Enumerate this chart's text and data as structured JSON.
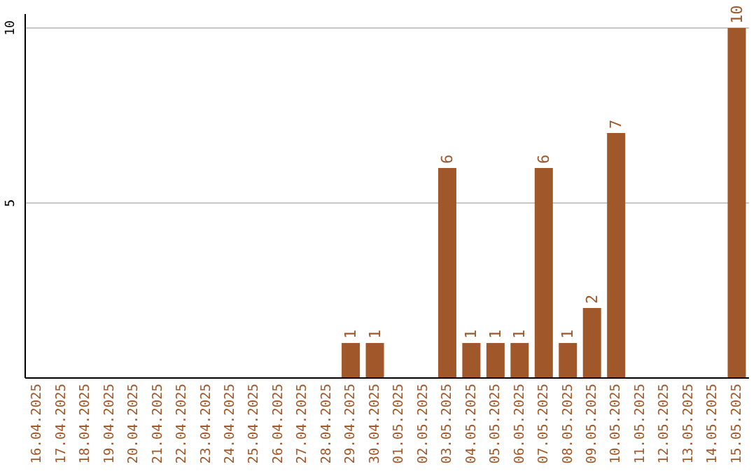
{
  "chart_data": {
    "type": "bar",
    "categories": [
      "16.04.2025",
      "17.04.2025",
      "18.04.2025",
      "19.04.2025",
      "20.04.2025",
      "21.04.2025",
      "22.04.2025",
      "23.04.2025",
      "24.04.2025",
      "25.04.2025",
      "26.04.2025",
      "27.04.2025",
      "28.04.2025",
      "29.04.2025",
      "30.04.2025",
      "01.05.2025",
      "02.05.2025",
      "03.05.2025",
      "04.05.2025",
      "05.05.2025",
      "06.05.2025",
      "07.05.2025",
      "08.05.2025",
      "09.05.2025",
      "10.05.2025",
      "11.05.2025",
      "12.05.2025",
      "13.05.2025",
      "14.05.2025",
      "15.05.2025"
    ],
    "values": [
      0,
      0,
      0,
      0,
      0,
      0,
      0,
      0,
      0,
      0,
      0,
      0,
      0,
      1,
      1,
      0,
      0,
      6,
      1,
      1,
      1,
      6,
      1,
      2,
      7,
      0,
      0,
      0,
      0,
      10
    ],
    "value_labels": [
      null,
      null,
      null,
      null,
      null,
      null,
      null,
      null,
      null,
      null,
      null,
      null,
      null,
      "1",
      "1",
      null,
      null,
      "6",
      "1",
      "1",
      "1",
      "6",
      "1",
      "2",
      "7",
      null,
      null,
      null,
      null,
      "10"
    ],
    "color": "#a0582a",
    "ylim": [
      0,
      10.4
    ],
    "yticks": [
      5,
      10
    ],
    "grid": "y"
  }
}
